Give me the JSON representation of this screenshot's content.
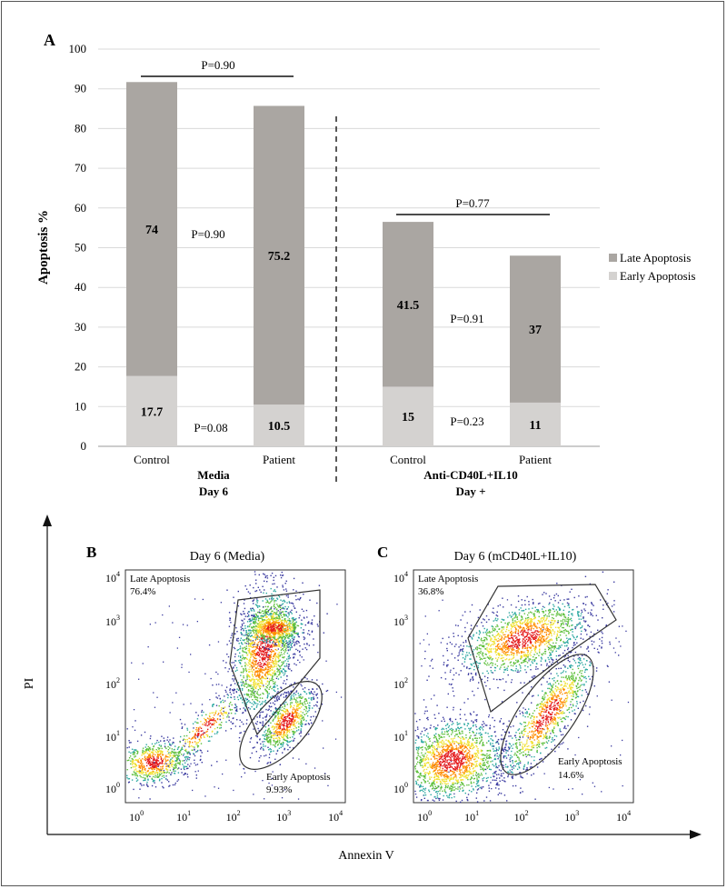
{
  "chart_data": [
    {
      "panel": "A",
      "type": "bar",
      "stacked": true,
      "ylabel": "Apoptosis %",
      "ylim": [
        0,
        100
      ],
      "yticks": [
        0,
        10,
        20,
        30,
        40,
        50,
        60,
        70,
        80,
        90,
        100
      ],
      "grid": true,
      "legend_position": "right",
      "categories": [
        "Control",
        "Patient",
        "Control",
        "Patient"
      ],
      "groups": [
        {
          "label_line1": "Media",
          "label_line2": "Day 6"
        },
        {
          "label_line1": "Anti-CD40L+IL10",
          "label_line2": "Day +"
        }
      ],
      "series": [
        {
          "name": "Early Apoptosis",
          "color": "#d4d2d0",
          "values": [
            17.7,
            10.5,
            15,
            11
          ],
          "labels": [
            "17.7",
            "10.5",
            "15",
            "11"
          ]
        },
        {
          "name": "Late Apoptosis",
          "color": "#aaa6a2",
          "values": [
            74,
            75.2,
            41.5,
            37
          ],
          "labels": [
            "74",
            "75.2",
            "41.5",
            "37"
          ]
        }
      ],
      "annotations": {
        "media_total_p": "P=0.90",
        "media_late_p": "P=0.90",
        "media_early_p": "P=0.08",
        "treated_total_p": "P=0.77",
        "treated_late_p": "P=0.91",
        "treated_early_p": "P=0.23"
      }
    },
    {
      "panel": "B",
      "type": "scatter",
      "title": "Day 6 (Media)",
      "xlabel": "Annexin V",
      "ylabel": "PI",
      "log_axes": true,
      "xlim": [
        0.5,
        20000
      ],
      "ylim": [
        0.5,
        20000
      ],
      "gates": [
        {
          "name": "Late Apoptosis",
          "percent": "76.4%"
        },
        {
          "name": "Early Apoptosis",
          "percent": "9.93%"
        }
      ]
    },
    {
      "panel": "C",
      "type": "scatter",
      "title": "Day 6 (mCD40L+IL10)",
      "xlabel": "Annexin V",
      "ylabel": "PI",
      "log_axes": true,
      "xlim": [
        0.5,
        20000
      ],
      "ylim": [
        0.5,
        20000
      ],
      "gates": [
        {
          "name": "Late Apoptosis",
          "percent": "36.8%"
        },
        {
          "name": "Early Apoptosis",
          "percent": "14.6%"
        }
      ]
    }
  ],
  "flow_axes": {
    "ticks": [
      {
        "base": "10",
        "exp": "0"
      },
      {
        "base": "10",
        "exp": "1"
      },
      {
        "base": "10",
        "exp": "2"
      },
      {
        "base": "10",
        "exp": "3"
      },
      {
        "base": "10",
        "exp": "4"
      }
    ],
    "x_axis_label": "Annexin V",
    "y_axis_label": "PI"
  }
}
